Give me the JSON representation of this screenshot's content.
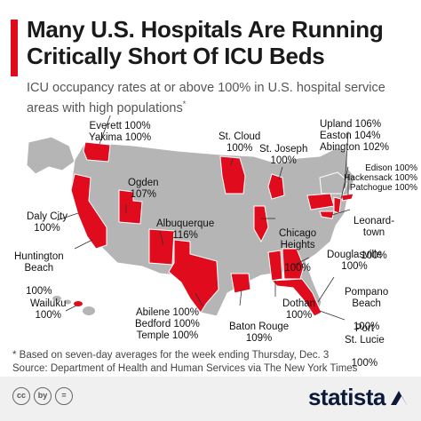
{
  "title": "Many U.S. Hospitals Are Running\nCritically Short Of ICU Beds",
  "subtitle": "ICU occupancy rates at or above 100% in U.S. hospital service areas with high populations",
  "subtitle_mark": "*",
  "labels": {
    "everett": "Everett 100%",
    "yakima": "Yakima 100%",
    "ogden_name": "Ogden",
    "ogden_value": "107%",
    "stcloud_name": "St. Cloud",
    "stcloud_value": "100%",
    "stjoseph_name": "St. Joseph",
    "stjoseph_value": "100%",
    "upland": "Upland 106%",
    "easton": "Easton 104%",
    "abington": "Abington 102%",
    "edison": "Edison 100%",
    "hackensack": "Hackensack 100%",
    "patchogue": "Patchogue 100%",
    "leonardtown_name": "Leonard-\ntown",
    "leonardtown_value": "100%",
    "dalycity_name": "Daly City",
    "dalycity_value": "100%",
    "huntington_name": "Huntington\nBeach",
    "huntington_value": "100%",
    "albuquerque_name": "Albuquerque",
    "albuquerque_value": "116%",
    "chicago_name": "Chicago\nHeights",
    "chicago_value": "100%",
    "douglasville_name": "Douglasville",
    "douglasville_value": "100%",
    "pompano_name": "Pompano\nBeach",
    "pompano_value": "100%",
    "portstlucie_name": "Port\nSt. Lucie",
    "portstlucie_value": "100%",
    "wailuku_name": "Wailuku",
    "wailuku_value": "100%",
    "abilene": "Abilene 100%",
    "bedford": "Bedford 100%",
    "temple": "Temple 100%",
    "dothan_name": "Dothan",
    "dothan_value": "100%",
    "batonrouge_name": "Baton Rouge",
    "batonrouge_value": "109%"
  },
  "footnote_line1": "* Based on seven-day averages for the week ending Thursday, Dec. 3",
  "footnote_line2": "Source: Department of Health and Human Services via The New York Times",
  "license_icons": [
    "cc",
    "by",
    "="
  ],
  "brand": "statista",
  "colors": {
    "accent": "#e00b1c",
    "highlight_state": "#e00b1c",
    "other_state": "#b5b5b5",
    "border": "#ffffff",
    "footer": "#f0f0f0",
    "brand": "#0c1a3a"
  }
}
